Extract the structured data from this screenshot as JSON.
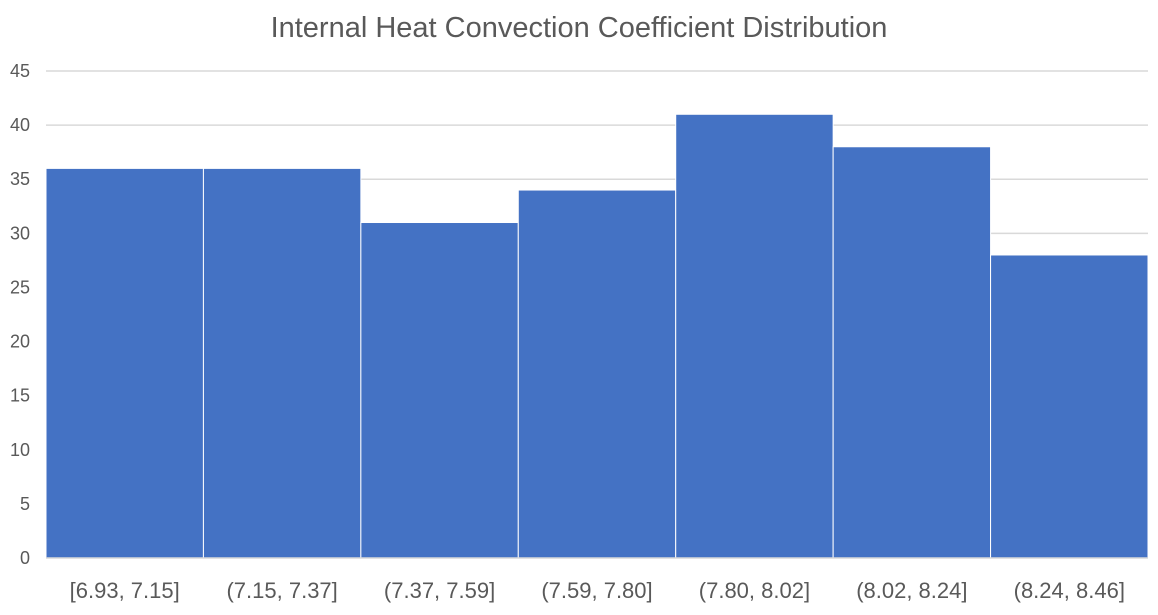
{
  "chart_data": {
    "type": "bar",
    "title": "Internal Heat Convection Coefficient Distribution",
    "categories": [
      "[6.93, 7.15]",
      "(7.15, 7.37]",
      "(7.37, 7.59]",
      "(7.59, 7.80]",
      "(7.80, 8.02]",
      "(8.02, 8.24]",
      "(8.24, 8.46]"
    ],
    "values": [
      36,
      36,
      31,
      34,
      41,
      38,
      28
    ],
    "ylim": [
      0,
      45
    ],
    "yticks": [
      0,
      5,
      10,
      15,
      20,
      25,
      30,
      35,
      40,
      45
    ],
    "grid": true,
    "bar_color": "#4472C4",
    "gridline_color": "#D9D9D9",
    "text_color": "#595959"
  }
}
